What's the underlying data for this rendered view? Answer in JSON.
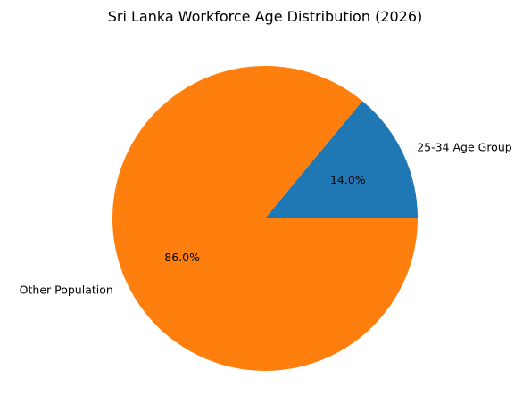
{
  "chart_data": {
    "type": "pie",
    "title": "Sri Lanka Workforce Age Distribution (2026)",
    "slices": [
      {
        "label": "25-34 Age Group",
        "value": 14.0,
        "pct_label": "14.0%",
        "color": "#1f77b4"
      },
      {
        "label": "Other Population",
        "value": 86.0,
        "pct_label": "86.0%",
        "color": "#ff7f0e"
      }
    ],
    "start_angle_deg": 0,
    "direction": "counterclockwise",
    "legend": "none"
  }
}
